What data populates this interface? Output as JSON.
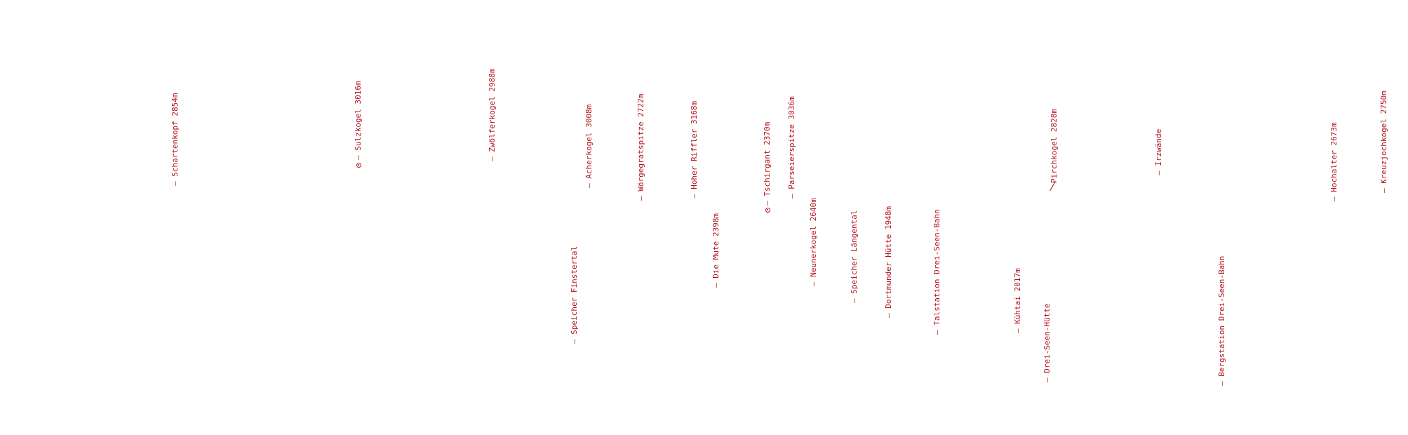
{
  "labels": [
    {
      "id": "schartenkopf",
      "text": "— Schartenkopf 2854m"
    },
    {
      "id": "sulzkogel",
      "text": "— Sulzkogel 3016m"
    },
    {
      "id": "zwoelferkogel",
      "text": "— Zwölferkogel 2988m"
    },
    {
      "id": "speicher-finstertal",
      "text": "— Speicher Finstertal"
    },
    {
      "id": "acherkogel",
      "text": "— Acherkogel 3008m"
    },
    {
      "id": "woergegratspitze",
      "text": "— Wörgegratspitze 2722m"
    },
    {
      "id": "hoher-riffler",
      "text": "— Hoher Riffler 3168m"
    },
    {
      "id": "die-mute",
      "text": "— Die Mute 2398m"
    },
    {
      "id": "tschirgant",
      "text": "— Tschirgant 2370m"
    },
    {
      "id": "parseierspitze",
      "text": "— Parseierspitze 3036m"
    },
    {
      "id": "neunerkogel",
      "text": "— Neunerkogel 2640m"
    },
    {
      "id": "speicher-laengental",
      "text": "— Speicher Längental"
    },
    {
      "id": "dortmunder-huette",
      "text": "— Dortmunder Hütte 1948m"
    },
    {
      "id": "talstation-drei-seen-bahn",
      "text": "— Talstation Drei-Seen-Bahn"
    },
    {
      "id": "kuehtai",
      "text": "— Kühtai 2017m"
    },
    {
      "id": "drei-seen-huette",
      "text": "— Drei-Seen-Hütte"
    },
    {
      "id": "pirchkogel",
      "text": "Pirchkogel 2828m"
    },
    {
      "id": "irzwaende",
      "text": "— Irzwände"
    },
    {
      "id": "bergstation-drei-seen-bahn",
      "text": "— Bergstation Drei-Seen-Bahn"
    },
    {
      "id": "hochalter",
      "text": "— Hochalter 2673m"
    },
    {
      "id": "kreuzjochkogel",
      "text": "— Kreuzjochkogel 2750m"
    }
  ]
}
